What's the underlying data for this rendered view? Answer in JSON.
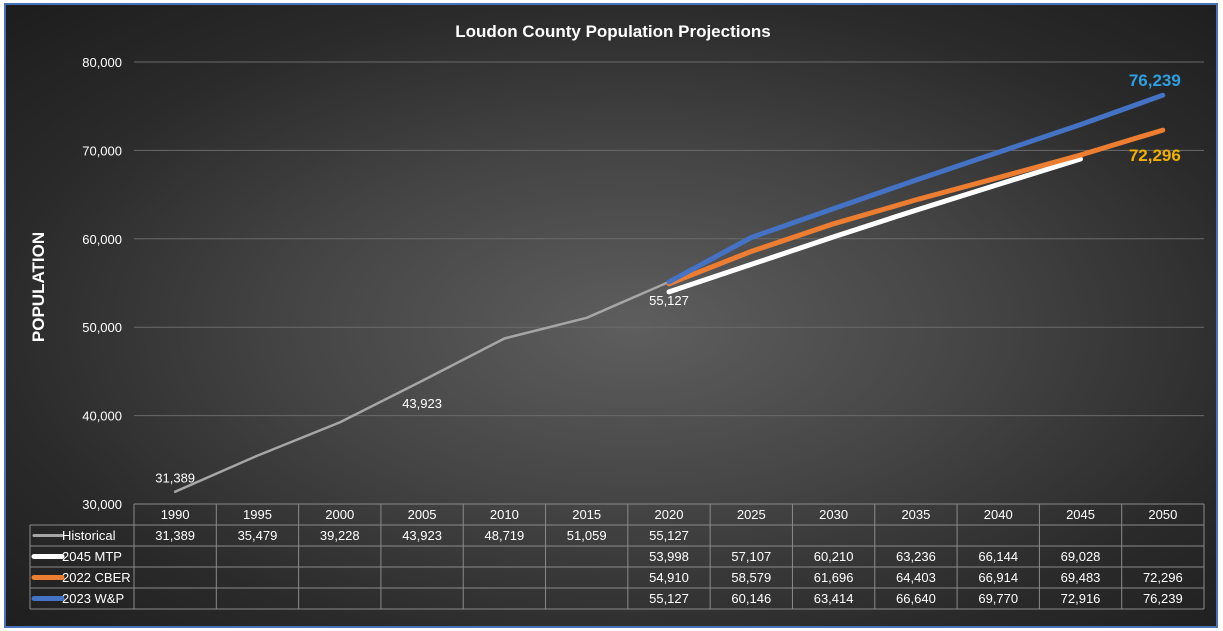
{
  "chart_data": {
    "type": "line",
    "title": "Loudon County Population Projections",
    "ylabel": "POPULATION",
    "xlabel": "",
    "ylim": [
      30000,
      80000
    ],
    "y_ticks": [
      "30,000",
      "40,000",
      "50,000",
      "60,000",
      "70,000",
      "80,000"
    ],
    "y_tick_values": [
      30000,
      40000,
      50000,
      60000,
      70000,
      80000
    ],
    "categories": [
      "1990",
      "1995",
      "2000",
      "2005",
      "2010",
      "2015",
      "2020",
      "2025",
      "2030",
      "2035",
      "2040",
      "2045",
      "2050"
    ],
    "grid": "horizontal",
    "legend": "data table",
    "series": [
      {
        "name": "Historical",
        "color": "#a6a6a6",
        "values": [
          31389,
          35479,
          39228,
          43923,
          48719,
          51059,
          55127,
          null,
          null,
          null,
          null,
          null,
          null
        ],
        "table": [
          "31,389",
          "35,479",
          "39,228",
          "43,923",
          "48,719",
          "51,059",
          "55,127",
          "",
          "",
          "",
          "",
          "",
          ""
        ]
      },
      {
        "name": "2045 MTP",
        "color": "#ffffff",
        "values": [
          null,
          null,
          null,
          null,
          null,
          null,
          53998,
          57107,
          60210,
          63236,
          66144,
          69028,
          null
        ],
        "table": [
          "",
          "",
          "",
          "",
          "",
          "",
          "53,998",
          "57,107",
          "60,210",
          "63,236",
          "66,144",
          "69,028",
          ""
        ]
      },
      {
        "name": "2022 CBER",
        "color": "#ed7d31",
        "values": [
          null,
          null,
          null,
          null,
          null,
          null,
          54910,
          58579,
          61696,
          64403,
          66914,
          69483,
          72296
        ],
        "table": [
          "",
          "",
          "",
          "",
          "",
          "",
          "54,910",
          "58,579",
          "61,696",
          "64,403",
          "66,914",
          "69,483",
          "72,296"
        ]
      },
      {
        "name": "2023 W&P",
        "color": "#4472c4",
        "values": [
          null,
          null,
          null,
          null,
          null,
          null,
          55127,
          60146,
          63414,
          66640,
          69770,
          72916,
          76239
        ],
        "table": [
          "",
          "",
          "",
          "",
          "",
          "",
          "55,127",
          "60,146",
          "63,414",
          "66,640",
          "69,770",
          "72,916",
          "76,239"
        ]
      }
    ],
    "data_labels": [
      {
        "text": "31,389",
        "series": 0,
        "index": 0
      },
      {
        "text": "43,923",
        "series": 0,
        "index": 3
      },
      {
        "text": "55,127",
        "series": 0,
        "index": 6
      }
    ],
    "end_labels": [
      {
        "text": "76,239",
        "series": 3,
        "color": "#2f9fe0"
      },
      {
        "text": "72,296",
        "series": 2,
        "color": "#f0b000"
      }
    ]
  }
}
